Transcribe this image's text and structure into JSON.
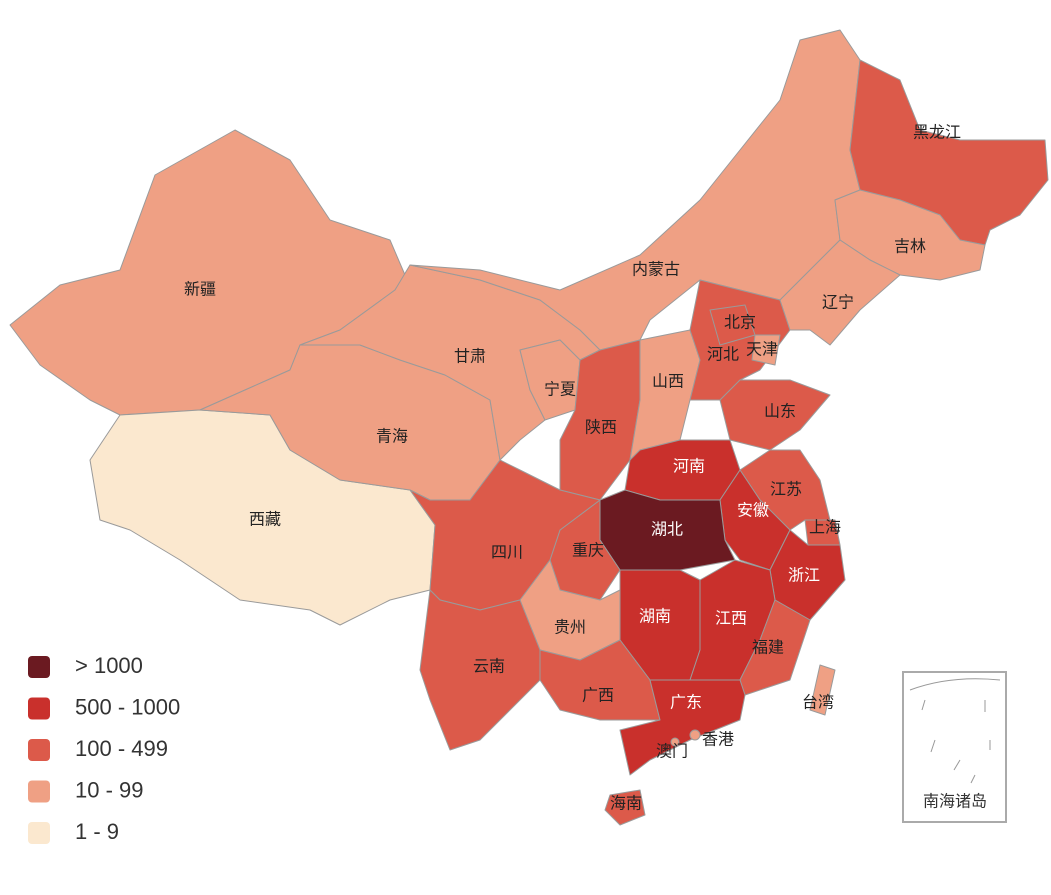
{
  "legend": [
    {
      "label": "> 1000",
      "color": "#6b1a21"
    },
    {
      "label": "500 - 1000",
      "color": "#c9302c"
    },
    {
      "label": "100 - 499",
      "color": "#dc5a4a"
    },
    {
      "label": "10 - 99",
      "color": "#efa084"
    },
    {
      "label": "1 - 9",
      "color": "#fbe8cf"
    }
  ],
  "regions": [
    {
      "name": "新疆",
      "level": 3
    },
    {
      "name": "西藏",
      "level": 4
    },
    {
      "name": "青海",
      "level": 3
    },
    {
      "name": "甘肃",
      "level": 3
    },
    {
      "name": "内蒙古",
      "level": 3
    },
    {
      "name": "宁夏",
      "level": 3
    },
    {
      "name": "陕西",
      "level": 2
    },
    {
      "name": "山西",
      "level": 3
    },
    {
      "name": "河北",
      "level": 2
    },
    {
      "name": "北京",
      "level": 2
    },
    {
      "name": "天津",
      "level": 3
    },
    {
      "name": "山东",
      "level": 2
    },
    {
      "name": "河南",
      "level": 1
    },
    {
      "name": "江苏",
      "level": 2
    },
    {
      "name": "安徽",
      "level": 1
    },
    {
      "name": "上海",
      "level": 2
    },
    {
      "name": "浙江",
      "level": 1
    },
    {
      "name": "湖北",
      "level": 0
    },
    {
      "name": "重庆",
      "level": 2
    },
    {
      "name": "四川",
      "level": 2
    },
    {
      "name": "贵州",
      "level": 3
    },
    {
      "name": "云南",
      "level": 2
    },
    {
      "name": "湖南",
      "level": 1
    },
    {
      "name": "江西",
      "level": 1
    },
    {
      "name": "福建",
      "level": 2
    },
    {
      "name": "广西",
      "level": 2
    },
    {
      "name": "广东",
      "level": 1
    },
    {
      "name": "海南",
      "level": 2
    },
    {
      "name": "台湾",
      "level": 3
    },
    {
      "name": "香港",
      "level": 3
    },
    {
      "name": "澳门",
      "level": 3
    },
    {
      "name": "黑龙江",
      "level": 2
    },
    {
      "name": "吉林",
      "level": 3
    },
    {
      "name": "辽宁",
      "level": 3
    }
  ],
  "inset": {
    "label": "南海诸岛"
  }
}
